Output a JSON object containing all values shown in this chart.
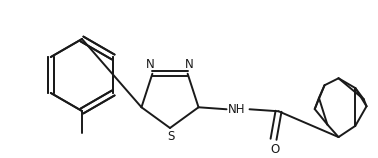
{
  "bg_color": "#ffffff",
  "line_color": "#1a1a1a",
  "line_width": 1.4,
  "font_size": 8.5,
  "figsize": [
    3.78,
    1.58
  ],
  "dpi": 100,
  "xlim": [
    0,
    378
  ],
  "ylim": [
    0,
    158
  ]
}
